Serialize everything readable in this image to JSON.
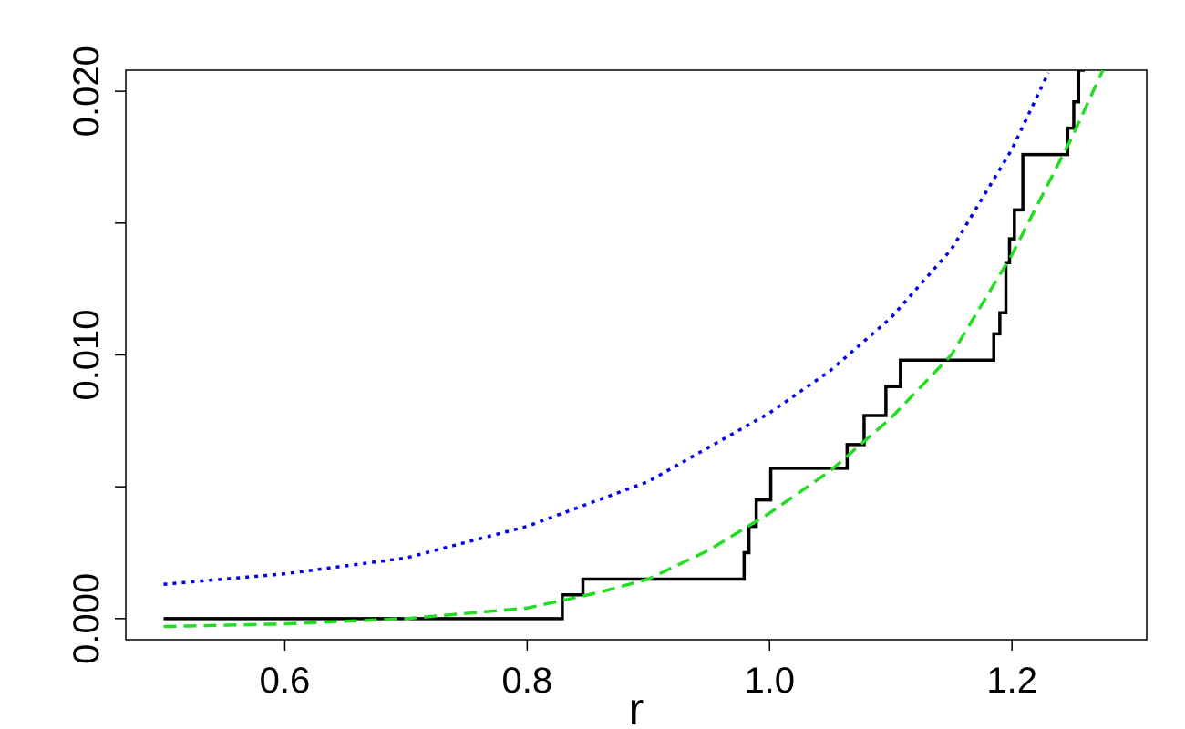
{
  "chart_data": {
    "type": "line",
    "xlabel": "r",
    "xlim": [
      0.4688,
      1.3112
    ],
    "ylim": [
      -0.0008,
      0.0208
    ],
    "xticks": [
      0.6,
      0.8,
      {
        "value": 1,
        "label": "1.0"
      },
      1.2
    ],
    "yticks": [
      {
        "value": 0,
        "label": "0.000"
      },
      {
        "value": 0.005,
        "label": null
      },
      {
        "value": 0.01,
        "label": "0.010"
      },
      {
        "value": 0.015,
        "label": null
      },
      {
        "value": 0.02,
        "label": "0.020"
      }
    ],
    "series": [
      {
        "color": "#000000",
        "linestyle": "solid",
        "x": [
          0.5,
          0.829,
          0.829,
          0.846,
          0.846,
          0.979,
          0.979,
          0.983,
          0.983,
          0.989,
          0.989,
          1.001,
          1.001,
          1.064,
          1.064,
          1.078,
          1.078,
          1.096,
          1.096,
          1.108,
          1.108,
          1.185,
          1.185,
          1.19,
          1.19,
          1.195,
          1.195,
          1.198,
          1.198,
          1.202,
          1.202,
          1.209,
          1.209,
          1.246,
          1.246,
          1.251,
          1.251,
          1.255,
          1.255,
          1.26
        ],
        "values": [
          0,
          0,
          0.0009,
          0.0009,
          0.0015,
          0.0015,
          0.0025,
          0.0025,
          0.0035,
          0.0035,
          0.0045,
          0.0045,
          0.0057,
          0.0057,
          0.0066,
          0.0066,
          0.0077,
          0.0077,
          0.0088,
          0.0088,
          0.0098,
          0.0098,
          0.0108,
          0.0108,
          0.0116,
          0.0116,
          0.0135,
          0.0135,
          0.0144,
          0.0144,
          0.0155,
          0.0155,
          0.0176,
          0.0176,
          0.0186,
          0.0186,
          0.0196,
          0.0196,
          0.0208,
          0.0208
        ]
      },
      {
        "color": "#22dd22",
        "linestyle": "dashed",
        "x": [
          0.5,
          0.6,
          0.7,
          0.8,
          0.86,
          0.9,
          0.95,
          1.0,
          1.05,
          1.1,
          1.15,
          1.2,
          1.25,
          1.275
        ],
        "values": [
          -0.0003,
          -0.0002,
          0,
          0.0004,
          0.001,
          0.0015,
          0.0026,
          0.004,
          0.0056,
          0.0076,
          0.01,
          0.0138,
          0.0183,
          0.0208
        ]
      },
      {
        "color": "#0000ee",
        "linestyle": "dotted",
        "x": [
          0.5,
          0.6,
          0.7,
          0.8,
          0.9,
          1.0,
          1.05,
          1.1,
          1.15,
          1.2,
          1.23
        ],
        "values": [
          0.0013,
          0.0017,
          0.0023,
          0.0035,
          0.0052,
          0.0078,
          0.0094,
          0.0114,
          0.014,
          0.0178,
          0.0207
        ]
      }
    ]
  }
}
